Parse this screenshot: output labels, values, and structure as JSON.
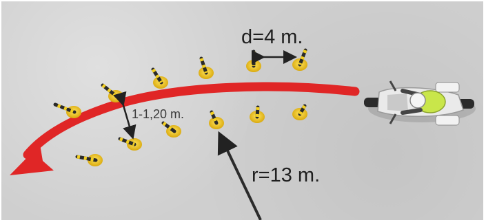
{
  "diagram": {
    "cone_spacing_label": "d=4 m.",
    "lane_width_label": "1-1,20 m.",
    "radius_label": "r=13 m."
  },
  "colors": {
    "track_arrow": "#e02626",
    "cone_base": "#f3cf22",
    "cone_stripe": "#2a2a2a",
    "asphalt": "#cfcfcf",
    "rider_vest": "#c9e64a"
  },
  "icons": [
    "motorcycle-icon",
    "cone-icon",
    "curved-arrow-icon",
    "dimension-arrow-icon"
  ]
}
